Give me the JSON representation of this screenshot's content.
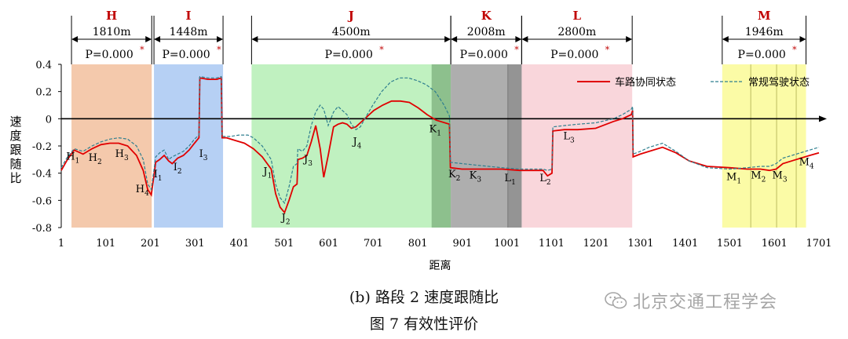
{
  "chart_data": {
    "type": "line",
    "xlabel": "距离",
    "ylabel": "速度跟随比",
    "xlim": [
      1,
      1701
    ],
    "ylim": [
      -0.8,
      0.4
    ],
    "x_ticks": [
      1,
      101,
      201,
      301,
      401,
      501,
      601,
      701,
      801,
      901,
      1001,
      1101,
      1201,
      1301,
      1401,
      1501,
      1601,
      1701
    ],
    "y_ticks": [
      0.4,
      0.2,
      0,
      -0.2,
      -0.4,
      -0.6,
      -0.8
    ],
    "y_tick_labels": [
      "0.4",
      "0.2",
      "0",
      "-0.2",
      "-0.4",
      "-0.6",
      "-0.8"
    ],
    "legend_position": "top-right",
    "series": [
      {
        "name": "车路协同状态",
        "color": "#e00000",
        "style": "solid",
        "x": [
          1,
          15,
          30,
          50,
          70,
          90,
          110,
          130,
          150,
          170,
          185,
          195,
          203,
          213,
          222,
          232,
          242,
          250,
          262,
          275,
          288,
          300,
          310,
          312,
          330,
          350,
          360,
          362,
          372,
          392,
          412,
          432,
          452,
          472,
          482,
          492,
          502,
          512,
          522,
          530,
          532,
          542,
          552,
          562,
          572,
          582,
          590,
          600,
          612,
          622,
          632,
          642,
          652,
          662,
          672,
          682,
          692,
          702,
          722,
          742,
          762,
          782,
          802,
          822,
          842,
          872,
          874,
          900,
          930,
          960,
          990,
          1030,
          1060,
          1082,
          1092,
          1102,
          1104,
          1130,
          1160,
          1200,
          1240,
          1260,
          1280,
          1283,
          1284,
          1300,
          1320,
          1350,
          1380,
          1410,
          1450,
          1500,
          1540,
          1570,
          1590,
          1605,
          1620,
          1650,
          1680,
          1701
        ],
        "y": [
          -0.38,
          -0.3,
          -0.23,
          -0.26,
          -0.22,
          -0.19,
          -0.18,
          -0.18,
          -0.2,
          -0.27,
          -0.38,
          -0.52,
          -0.56,
          -0.32,
          -0.3,
          -0.27,
          -0.31,
          -0.33,
          -0.29,
          -0.27,
          -0.23,
          -0.18,
          -0.14,
          0.3,
          0.29,
          0.29,
          0.3,
          -0.14,
          -0.14,
          -0.16,
          -0.18,
          -0.22,
          -0.28,
          -0.37,
          -0.55,
          -0.65,
          -0.69,
          -0.6,
          -0.5,
          -0.48,
          -0.3,
          -0.29,
          -0.27,
          -0.17,
          -0.05,
          -0.22,
          -0.43,
          -0.27,
          -0.06,
          -0.04,
          -0.03,
          -0.04,
          -0.07,
          -0.06,
          -0.03,
          0.0,
          0.03,
          0.06,
          0.1,
          0.13,
          0.13,
          0.12,
          0.08,
          0.03,
          -0.01,
          -0.04,
          -0.36,
          -0.37,
          -0.37,
          -0.37,
          -0.37,
          -0.38,
          -0.38,
          -0.38,
          -0.42,
          -0.4,
          -0.09,
          -0.08,
          -0.08,
          -0.07,
          -0.02,
          0.0,
          0.03,
          0.06,
          -0.28,
          -0.26,
          -0.24,
          -0.21,
          -0.25,
          -0.31,
          -0.35,
          -0.36,
          -0.37,
          -0.37,
          -0.38,
          -0.37,
          -0.33,
          -0.3,
          -0.27,
          -0.25
        ]
      },
      {
        "name": "常规驾驶状态",
        "color": "#2f7f8f",
        "style": "dashed",
        "x": [
          1,
          15,
          30,
          50,
          70,
          90,
          110,
          130,
          150,
          170,
          185,
          195,
          203,
          213,
          222,
          232,
          242,
          250,
          262,
          275,
          288,
          300,
          310,
          312,
          330,
          350,
          360,
          362,
          380,
          400,
          420,
          432,
          452,
          472,
          482,
          492,
          502,
          512,
          522,
          530,
          532,
          542,
          552,
          562,
          572,
          582,
          590,
          600,
          612,
          622,
          632,
          642,
          652,
          662,
          672,
          682,
          700,
          720,
          740,
          760,
          780,
          800,
          820,
          840,
          860,
          872,
          874,
          900,
          930,
          960,
          990,
          1030,
          1060,
          1082,
          1092,
          1102,
          1104,
          1130,
          1160,
          1200,
          1240,
          1260,
          1280,
          1283,
          1284,
          1300,
          1320,
          1350,
          1380,
          1410,
          1450,
          1500,
          1540,
          1570,
          1590,
          1605,
          1620,
          1650,
          1680,
          1701
        ],
        "y": [
          -0.36,
          -0.28,
          -0.22,
          -0.24,
          -0.2,
          -0.17,
          -0.15,
          -0.14,
          -0.15,
          -0.2,
          -0.3,
          -0.48,
          -0.52,
          -0.28,
          -0.25,
          -0.23,
          -0.3,
          -0.28,
          -0.26,
          -0.24,
          -0.2,
          -0.15,
          -0.12,
          0.31,
          0.3,
          0.3,
          0.31,
          -0.13,
          -0.13,
          -0.12,
          -0.12,
          -0.14,
          -0.2,
          -0.3,
          -0.48,
          -0.58,
          -0.62,
          -0.5,
          -0.35,
          -0.33,
          -0.22,
          -0.24,
          -0.2,
          -0.05,
          0.05,
          0.1,
          0.07,
          -0.05,
          0.05,
          0.09,
          0.06,
          0.03,
          -0.04,
          -0.08,
          -0.06,
          0.0,
          0.1,
          0.2,
          0.27,
          0.3,
          0.3,
          0.28,
          0.25,
          0.2,
          0.1,
          0.02,
          -0.32,
          -0.33,
          -0.34,
          -0.35,
          -0.36,
          -0.37,
          -0.37,
          -0.37,
          -0.38,
          -0.37,
          -0.06,
          -0.05,
          -0.04,
          -0.03,
          0.0,
          0.03,
          0.07,
          0.09,
          -0.26,
          -0.24,
          -0.21,
          -0.18,
          -0.24,
          -0.31,
          -0.36,
          -0.37,
          -0.36,
          -0.35,
          -0.35,
          -0.33,
          -0.29,
          -0.26,
          -0.23,
          -0.21
        ]
      }
    ],
    "regions": [
      {
        "label": "H",
        "distance": "1810m",
        "p_value": "P=0.000",
        "x_start": 24,
        "x_end": 204,
        "color": "#f2c09e"
      },
      {
        "label": "I",
        "distance": "1448m",
        "p_value": "P=0.000",
        "x_start": 209,
        "x_end": 364,
        "color": "#a9c8f2"
      },
      {
        "label": "J",
        "distance": "4500m",
        "p_value": "P=0.000",
        "x_start": 428,
        "x_end": 875,
        "color": "#b5efb5"
      },
      {
        "label": "K",
        "distance": "2008m",
        "p_value": "P=0.000",
        "x_start": 875,
        "x_end": 1034,
        "color": "#a0a0a0"
      },
      {
        "label": "L",
        "distance": "2800m",
        "p_value": "P=0.000",
        "x_start": 1034,
        "x_end": 1282,
        "color": "#f8cfd5"
      },
      {
        "label": "M",
        "distance": "1946m",
        "p_value": "P=0.000",
        "x_start": 1484,
        "x_end": 1672,
        "color": "#fafa96"
      }
    ],
    "annotations": [
      {
        "text": "H",
        "sub": "1",
        "x": 27,
        "y": -0.3
      },
      {
        "text": "H",
        "sub": "2",
        "x": 77,
        "y": -0.31
      },
      {
        "text": "H",
        "sub": "3",
        "x": 137,
        "y": -0.28
      },
      {
        "text": "H",
        "sub": "4",
        "x": 183,
        "y": -0.54
      },
      {
        "text": "I",
        "sub": "1",
        "x": 218,
        "y": -0.43
      },
      {
        "text": "I",
        "sub": "2",
        "x": 262,
        "y": -0.38
      },
      {
        "text": "I",
        "sub": "3",
        "x": 320,
        "y": -0.28
      },
      {
        "text": "J",
        "sub": "1",
        "x": 464,
        "y": -0.41
      },
      {
        "text": "J",
        "sub": "2",
        "x": 505,
        "y": -0.75
      },
      {
        "text": "J",
        "sub": "3",
        "x": 555,
        "y": -0.32
      },
      {
        "text": "J",
        "sub": "4",
        "x": 665,
        "y": -0.19
      },
      {
        "text": "K",
        "sub": "1",
        "x": 840,
        "y": -0.1
      },
      {
        "text": "K",
        "sub": "2",
        "x": 883,
        "y": -0.43
      },
      {
        "text": "K",
        "sub": "3",
        "x": 930,
        "y": -0.44
      },
      {
        "text": "L",
        "sub": "1",
        "x": 1008,
        "y": -0.46
      },
      {
        "text": "L",
        "sub": "2",
        "x": 1087,
        "y": -0.46
      },
      {
        "text": "L",
        "sub": "3",
        "x": 1140,
        "y": -0.15
      },
      {
        "text": "M",
        "sub": "1",
        "x": 1510,
        "y": -0.45
      },
      {
        "text": "M",
        "sub": "2",
        "x": 1565,
        "y": -0.44
      },
      {
        "text": "M",
        "sub": "3",
        "x": 1613,
        "y": -0.44
      },
      {
        "text": "M",
        "sub": "4",
        "x": 1673,
        "y": -0.34
      }
    ],
    "region_dividers_m": [
      1548,
      1606,
      1650
    ],
    "region_dividers_k": [
      1003
    ]
  },
  "captions": {
    "sub": "(b)  路段 2 速度跟随比",
    "fig": "图 7  有效性评价"
  },
  "watermark": {
    "text": "北京交通工程学会",
    "icon": "wechat-icon"
  }
}
